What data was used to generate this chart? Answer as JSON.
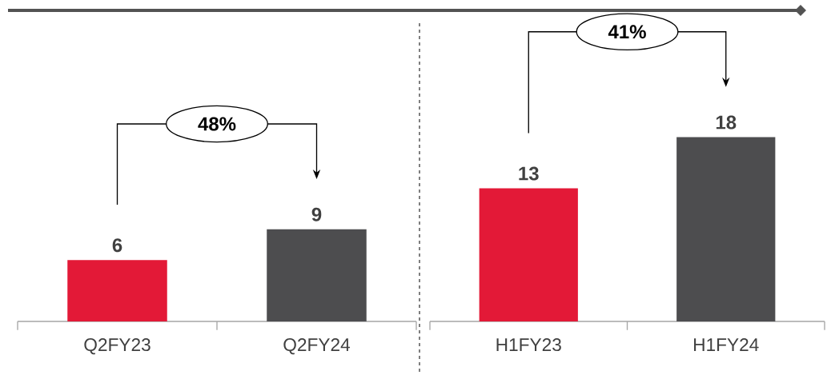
{
  "chart_data": [
    {
      "type": "bar",
      "categories": [
        "Q2FY23",
        "Q2FY24"
      ],
      "values": [
        6,
        9
      ],
      "colors": [
        "#e31937",
        "#4d4d4f"
      ],
      "data_labels": true,
      "annotations": [
        "48%"
      ]
    },
    {
      "type": "bar",
      "categories": [
        "H1FY23",
        "H1FY24"
      ],
      "values": [
        13,
        18
      ],
      "colors": [
        "#e31937",
        "#4d4d4f"
      ],
      "data_labels": true,
      "annotations": [
        "41%"
      ]
    }
  ]
}
